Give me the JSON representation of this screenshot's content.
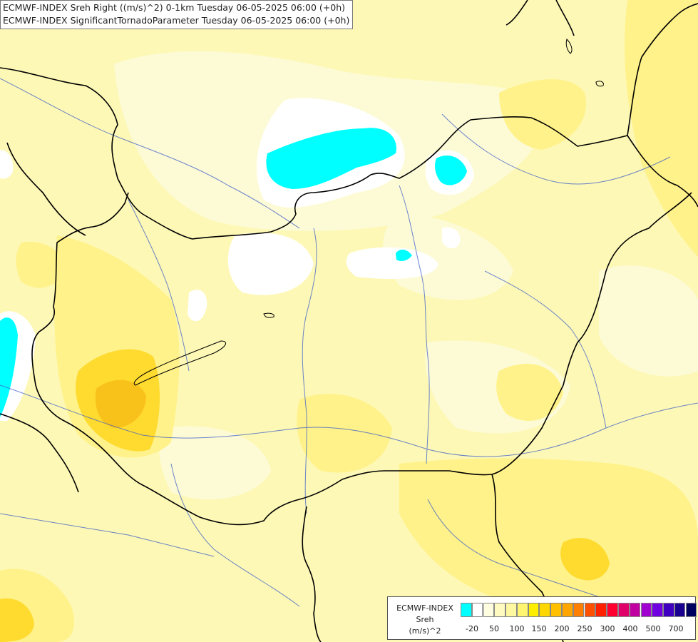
{
  "titles": {
    "line1": "ECMWF-INDEX Sreh Right ((m/s)^2) 0-1km Tuesday 06-05-2025 06:00 (+0h)",
    "line2": "ECMWF-INDEX SignificantTornadoParameter Tuesday 06-05-2025 06:00 (+0h)"
  },
  "legend": {
    "title_line1": "ECMWF-INDEX",
    "title_line2": "Sreh",
    "title_line3": "(m/s)^2",
    "ticks": [
      "-20",
      "50",
      "100",
      "150",
      "200",
      "250",
      "300",
      "400",
      "500",
      "700"
    ],
    "colors": [
      "#00ffff",
      "#ffffff",
      "#fffde0",
      "#fffbc0",
      "#fff8a0",
      "#fff570",
      "#ffee00",
      "#ffd700",
      "#ffc000",
      "#ffa500",
      "#ff7f00",
      "#ff5000",
      "#ff2000",
      "#ff0030",
      "#e0006a",
      "#c000a0",
      "#a000d0",
      "#7000e0",
      "#4000c0",
      "#1a0090",
      "#000060"
    ]
  },
  "colors": {
    "background": "#fdf8b6",
    "light": "#fdfbd6",
    "mid": "#fff28a",
    "strong": "#ffdb30",
    "orange": "#f9c21a",
    "cyan": "#00ffff",
    "border": "#000000",
    "river": "#3a5cc8"
  }
}
